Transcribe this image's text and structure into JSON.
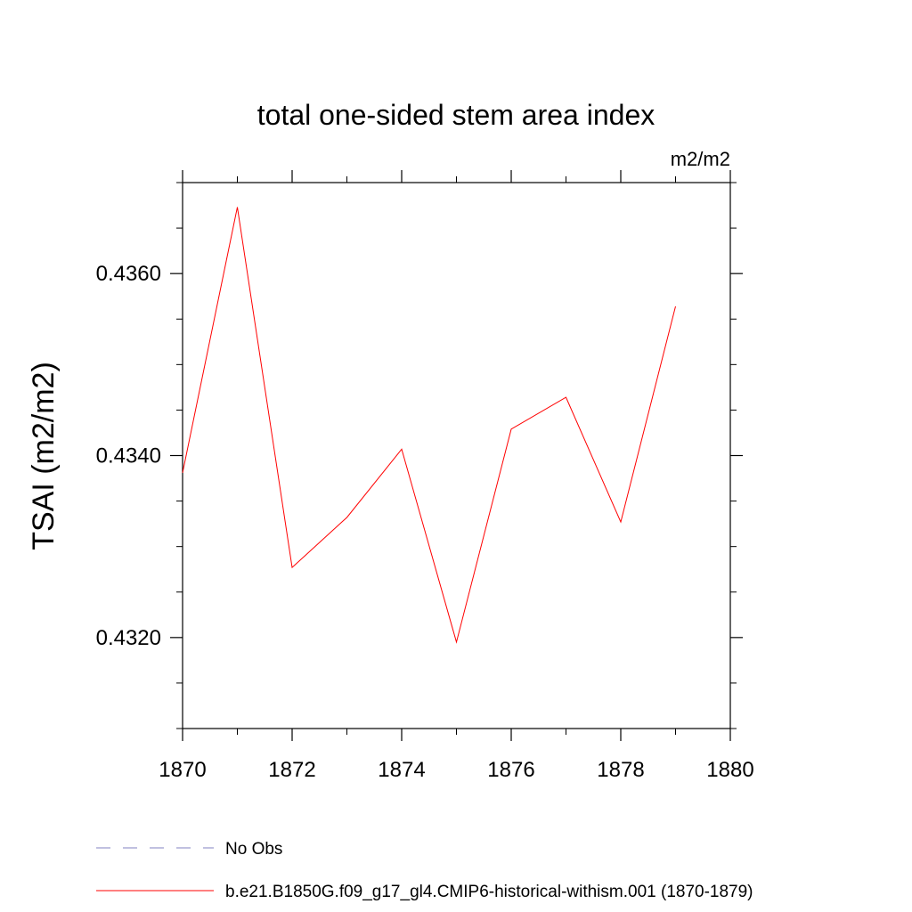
{
  "chart_data": {
    "type": "line",
    "title": "total one-sided stem area index",
    "units": "m2/m2",
    "ylabel": "TSAI  (m2/m2)",
    "xlabel": "",
    "xlim": [
      1870,
      1880
    ],
    "ylim": [
      0.431,
      0.437
    ],
    "xticks": [
      1870,
      1872,
      1874,
      1876,
      1878,
      1880
    ],
    "xtick_labels": [
      "1870",
      "1872",
      "1874",
      "1876",
      "1878",
      "1880"
    ],
    "yticks": [
      0.432,
      0.434,
      0.436
    ],
    "ytick_labels": [
      "0.4320",
      "0.4340",
      "0.4360"
    ],
    "grid": false,
    "legend_position": "bottom",
    "series": [
      {
        "name": "b.e21.B1850G.f09_g17_gl4.CMIP6-historical-withism.001 (1870-1879)",
        "color": "#ff0000",
        "style": "solid",
        "x": [
          1870,
          1871,
          1872,
          1873,
          1874,
          1875,
          1876,
          1877,
          1878,
          1879
        ],
        "y": [
          0.43381,
          0.43673,
          0.43277,
          0.43332,
          0.43407,
          0.43195,
          0.43429,
          0.43464,
          0.43327,
          0.43564
        ]
      }
    ],
    "legend": [
      {
        "label": "No Obs",
        "color": "#8080c0",
        "style": "dashed"
      },
      {
        "label": "b.e21.B1850G.f09_g17_gl4.CMIP6-historical-withism.001 (1870-1879)",
        "color": "#ff0000",
        "style": "solid"
      }
    ]
  }
}
